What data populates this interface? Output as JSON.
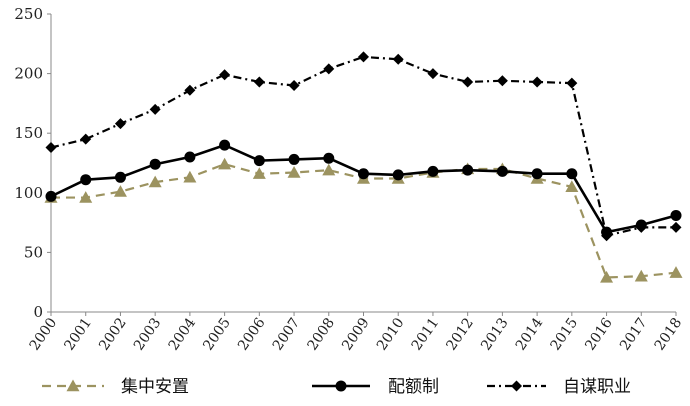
{
  "chart_data": {
    "type": "line",
    "title": "",
    "xlabel": "",
    "ylabel": "",
    "ylim": [
      0,
      250
    ],
    "yticks": [
      "0",
      "50",
      "100",
      "150",
      "200",
      "250"
    ],
    "categories": [
      "2000",
      "2001",
      "2002",
      "2003",
      "2004",
      "2005",
      "2006",
      "2007",
      "2008",
      "2009",
      "2010",
      "2011",
      "2012",
      "2013",
      "2014",
      "2015",
      "2016",
      "2017",
      "2018"
    ],
    "grid": false,
    "legend_position": "bottom",
    "series": [
      {
        "name": "集中安置",
        "color": "#9c9360",
        "line_style": "dashed",
        "marker": "triangle",
        "values": [
          96,
          96,
          101,
          109,
          113,
          124,
          116,
          117,
          119,
          112,
          112,
          117,
          120,
          120,
          112,
          105,
          29,
          30,
          33
        ]
      },
      {
        "name": "配额制",
        "color": "#000000",
        "line_style": "solid",
        "marker": "circle",
        "values": [
          97,
          111,
          113,
          124,
          130,
          140,
          127,
          128,
          129,
          116,
          115,
          118,
          119,
          118,
          116,
          116,
          67,
          73,
          81
        ]
      },
      {
        "name": "自谋职业",
        "color": "#000000",
        "line_style": "dashdot",
        "marker": "diamond",
        "values": [
          138,
          145,
          158,
          170,
          186,
          199,
          193,
          190,
          204,
          214,
          212,
          200,
          193,
          194,
          193,
          192,
          64,
          71,
          71
        ]
      }
    ]
  }
}
